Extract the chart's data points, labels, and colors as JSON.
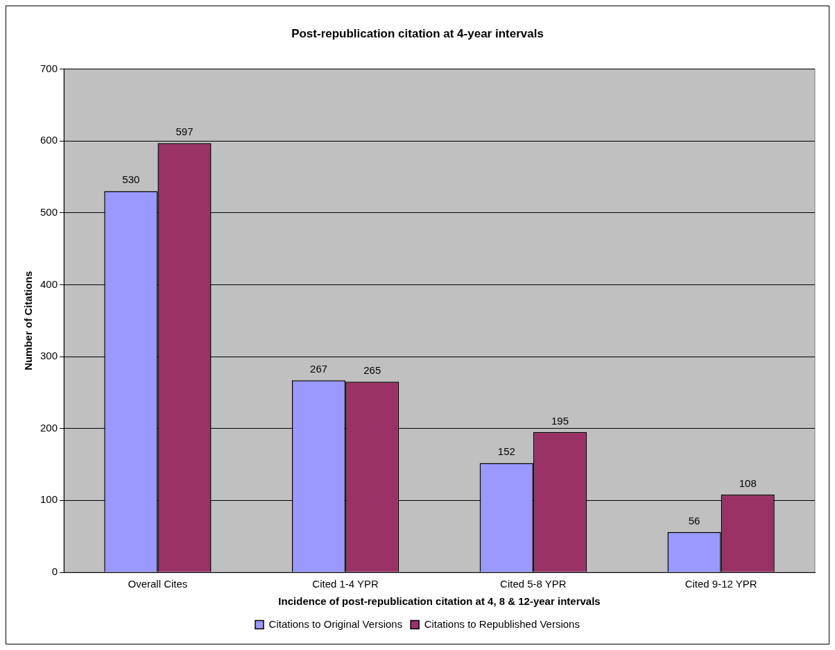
{
  "chart_data": {
    "type": "bar",
    "title": "Post-republication citation at 4-year intervals",
    "xlabel": "Incidence of post-republication citation at 4, 8 & 12-year intervals",
    "ylabel": "Number of Citations",
    "categories": [
      "Overall Cites",
      "Cited 1-4 YPR",
      "Cited 5-8 YPR",
      "Cited 9-12 YPR"
    ],
    "series": [
      {
        "name": "Citations to Original Versions",
        "color": "#9999ff",
        "values": [
          530,
          267,
          152,
          56
        ]
      },
      {
        "name": "Citations to Republished Versions",
        "color": "#993366",
        "values": [
          597,
          265,
          195,
          108
        ]
      }
    ],
    "ylim": [
      0,
      700
    ],
    "yticks": [
      0,
      100,
      200,
      300,
      400,
      500,
      600,
      700
    ],
    "grid": "y",
    "legend": "bottom",
    "data_labels": true
  }
}
